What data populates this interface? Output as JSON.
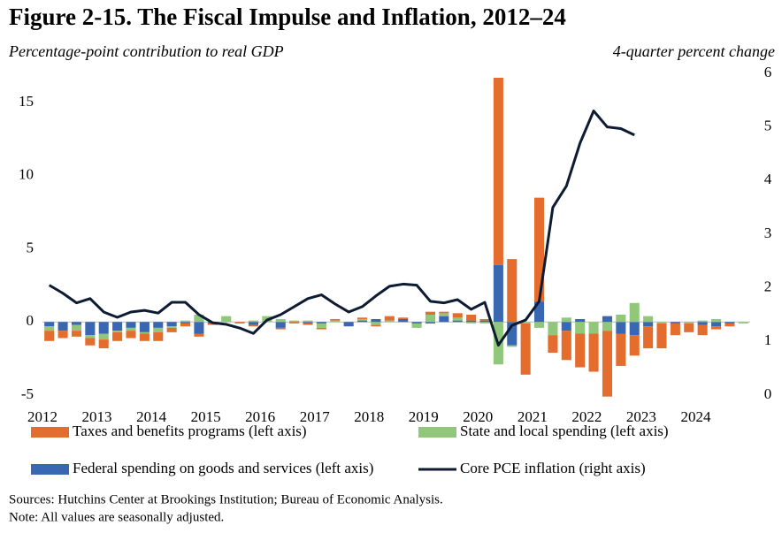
{
  "chart_data": {
    "type": "bar",
    "title": "Figure 2-15. The Fiscal Impulse and Inflation, 2012–24",
    "y_axis_label": "Percentage-point contribution to real GDP",
    "y2_axis_label": "4-quarter percent change",
    "categories": [
      "2012",
      null,
      null,
      null,
      "2013",
      null,
      null,
      null,
      "2014",
      null,
      null,
      null,
      "2015",
      null,
      null,
      null,
      "2016",
      null,
      null,
      null,
      "2017",
      null,
      null,
      null,
      "2018",
      null,
      null,
      null,
      "2019",
      null,
      null,
      null,
      "2020",
      null,
      null,
      null,
      "2021",
      null,
      null,
      null,
      "2022",
      null,
      null,
      null,
      "2023",
      null,
      null,
      null,
      "2024",
      null,
      null,
      null
    ],
    "series": [
      {
        "name": "Taxes and benefits programs (left axis)",
        "color": "#e46c2c",
        "values": [
          -0.7,
          -0.5,
          -0.4,
          -0.5,
          -0.6,
          -0.6,
          -0.5,
          -0.5,
          -0.6,
          -0.3,
          -0.2,
          -0.2,
          -0.1,
          0,
          -0.1,
          -0.1,
          0,
          -0.1,
          -0.1,
          -0.1,
          -0.1,
          0.1,
          0,
          0.1,
          -0.1,
          0.3,
          0.1,
          0,
          0.2,
          0.1,
          0.3,
          0.4,
          0.1,
          12.8,
          4.3,
          -3.5,
          7.1,
          -1.2,
          -2.0,
          -2.3,
          -2.6,
          -4.5,
          -2.2,
          -1.4,
          -1.5,
          -1.7,
          -0.8,
          -0.6,
          -0.7,
          -0.2,
          -0.2,
          0
        ]
      },
      {
        "name": "State and local spending (left axis)",
        "color": "#91c77a",
        "values": [
          -0.3,
          0,
          -0.4,
          -0.2,
          -0.4,
          -0.1,
          -0.2,
          -0.1,
          -0.3,
          -0.1,
          0.1,
          0.5,
          0,
          0.4,
          0,
          0.1,
          0.4,
          0.2,
          0.1,
          0.1,
          -0.3,
          0.1,
          0,
          0.1,
          -0.2,
          0.1,
          0,
          -0.3,
          0.5,
          0.2,
          0.2,
          -0.1,
          -0.1,
          -2.9,
          -0.1,
          -0.1,
          -0.4,
          -0.9,
          0.3,
          -0.8,
          -0.8,
          -0.6,
          0.5,
          1.3,
          0.4,
          -0.1,
          0,
          -0.1,
          0.1,
          0.2,
          0,
          -0.1
        ]
      },
      {
        "name": "Federal spending on goods and services (left axis)",
        "color": "#3a67b1",
        "values": [
          -0.3,
          -0.6,
          -0.2,
          -0.9,
          -0.8,
          -0.6,
          -0.4,
          -0.7,
          -0.4,
          -0.3,
          -0.1,
          -0.8,
          -0.1,
          0,
          0,
          -0.2,
          0,
          -0.4,
          0,
          -0.1,
          -0.1,
          0,
          -0.3,
          0.1,
          0.2,
          0,
          0.2,
          -0.1,
          -0.1,
          0.4,
          0.1,
          0.1,
          0.1,
          3.9,
          -1.6,
          0,
          1.4,
          0,
          -0.6,
          0.2,
          0,
          0.4,
          -0.8,
          -0.9,
          -0.3,
          0,
          -0.1,
          0,
          -0.2,
          -0.3,
          -0.1,
          0
        ]
      },
      {
        "name": "Core PCE inflation (right axis)",
        "color": "#0d1b33",
        "type": "line",
        "axis": "y2",
        "values": [
          2.05,
          1.9,
          1.72,
          1.8,
          1.55,
          1.45,
          1.55,
          1.58,
          1.53,
          1.73,
          1.73,
          1.5,
          1.35,
          1.32,
          1.25,
          1.15,
          1.4,
          1.5,
          1.65,
          1.8,
          1.87,
          1.7,
          1.55,
          1.65,
          1.85,
          2.03,
          2.07,
          2.05,
          1.75,
          1.72,
          1.78,
          1.6,
          1.73,
          0.93,
          1.3,
          1.4,
          1.75,
          3.5,
          3.9,
          4.7,
          5.3,
          5.0,
          4.97,
          4.85,
          null,
          null,
          null,
          null,
          null,
          null,
          null,
          null
        ]
      }
    ],
    "ylim": [
      -5,
      17
    ],
    "yticks": [
      -5,
      0,
      5,
      10,
      15
    ],
    "y2lim": [
      0,
      6
    ],
    "y2ticks": [
      0,
      1,
      2,
      3,
      4,
      5,
      6
    ],
    "sources": "Sources: Hutchins Center at Brookings Institution; Bureau of Economic Analysis.",
    "note": "Note: All values are seasonally adjusted."
  }
}
